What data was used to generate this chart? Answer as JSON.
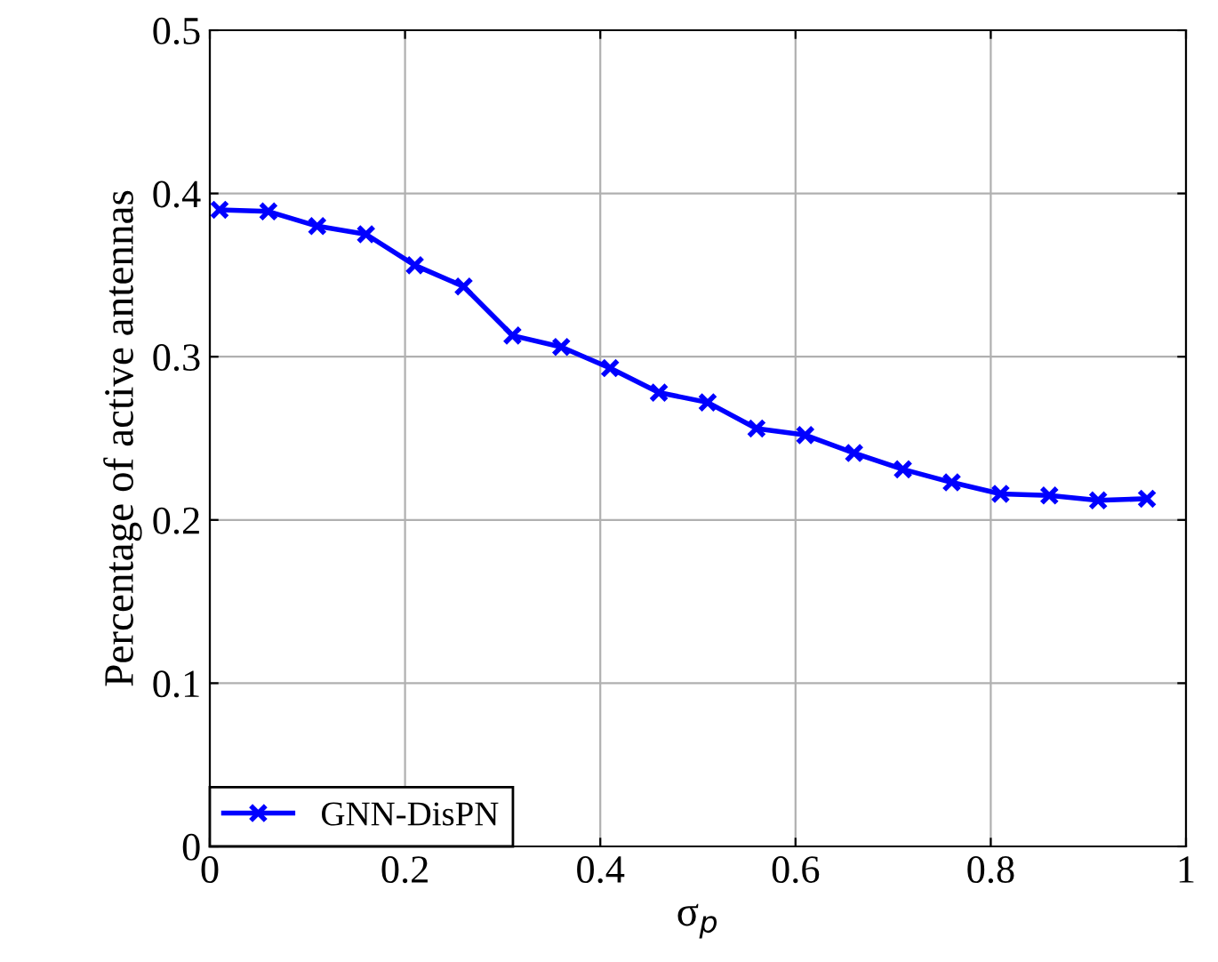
{
  "chart_data": {
    "type": "line",
    "xlabel": "σ$_{p}$",
    "ylabel": "Percentage of active antennas",
    "x": [
      0.01,
      0.06,
      0.11,
      0.16,
      0.21,
      0.26,
      0.31,
      0.36,
      0.41,
      0.46,
      0.51,
      0.56,
      0.61,
      0.66,
      0.71,
      0.76,
      0.81,
      0.86,
      0.91,
      0.96
    ],
    "series": [
      {
        "name": "GNN-DisPN",
        "color": "#0000ff",
        "values": [
          0.39,
          0.389,
          0.38,
          0.375,
          0.356,
          0.343,
          0.313,
          0.306,
          0.293,
          0.278,
          0.272,
          0.256,
          0.252,
          0.241,
          0.231,
          0.223,
          0.216,
          0.215,
          0.212,
          0.213
        ]
      }
    ],
    "xlim": [
      0,
      1
    ],
    "ylim": [
      0,
      0.5
    ],
    "xticks": [
      0,
      0.2,
      0.4,
      0.6,
      0.8,
      1
    ],
    "yticks": [
      0,
      0.1,
      0.2,
      0.3,
      0.4,
      0.5
    ],
    "grid": true,
    "legend": "bottom left",
    "marker": "cross",
    "line_style": "solid"
  }
}
